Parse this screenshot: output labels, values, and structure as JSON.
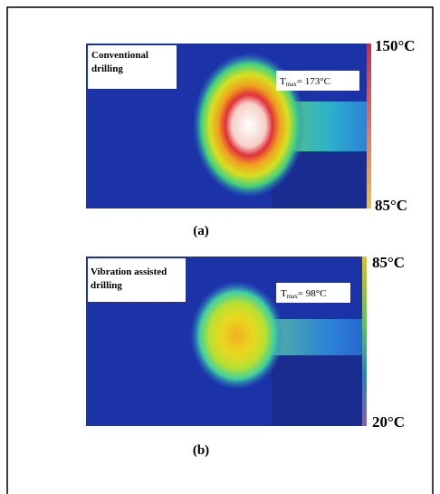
{
  "panels": [
    {
      "label": "Conventional drilling",
      "tmax": {
        "symbol": "T",
        "subscript": "max",
        "value": "= 173°C"
      },
      "scale_max": "150°C",
      "scale_min": "85°C",
      "caption": "(a)"
    },
    {
      "label": "Vibration assisted drilling",
      "tmax": {
        "symbol": "T",
        "subscript": "max",
        "value": "= 98°C"
      },
      "scale_max": "85°C",
      "scale_min": "20°C",
      "caption": "(b)"
    }
  ]
}
